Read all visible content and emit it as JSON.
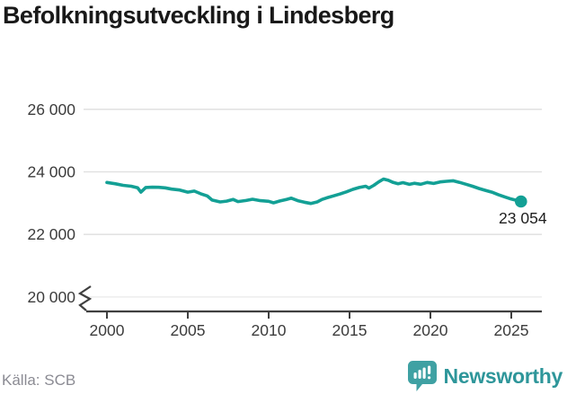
{
  "title": "Befolkningsutveckling i Lindesberg",
  "source": "Källa: SCB",
  "branding": {
    "name": "Newsworthy",
    "icon": "bar-chart-speech-bubble-icon"
  },
  "colors": {
    "line": "#13a095",
    "logo_teal": "#3fa1a3",
    "wordmark_teal": "#2e969a",
    "gridline": "#dedede",
    "gridline_light": "#eaeaea",
    "axis": "#3f3f3f",
    "axis_text": "#3c3c3c",
    "title_text": "#191919",
    "end_label_text": "#1f1f1f",
    "source_text": "#8b8b93"
  },
  "chart_data": {
    "type": "line",
    "title": "Befolkningsutveckling i Lindesberg",
    "xlabel": "",
    "ylabel": "",
    "x_ticks": [
      {
        "value": 2000,
        "label": "2000"
      },
      {
        "value": 2005,
        "label": "2005"
      },
      {
        "value": 2010,
        "label": "2010"
      },
      {
        "value": 2015,
        "label": "2015"
      },
      {
        "value": 2020,
        "label": "2020"
      },
      {
        "value": 2025,
        "label": "2025"
      }
    ],
    "y_ticks": [
      {
        "value": 20000,
        "label": "20 000"
      },
      {
        "value": 22000,
        "label": "22 000"
      },
      {
        "value": 24000,
        "label": "24 000"
      },
      {
        "value": 26000,
        "label": "26 000"
      }
    ],
    "ylim": [
      19800,
      26200
    ],
    "xlim": [
      1998.5,
      2026.9
    ],
    "grid": "horizontal",
    "legend": "none",
    "axis_break_at_bottom": true,
    "end_label": "23 054",
    "end_value": 23054,
    "series": [
      {
        "name": "Befolkning",
        "points": [
          [
            2000.0,
            23660
          ],
          [
            2000.5,
            23620
          ],
          [
            2001.0,
            23570
          ],
          [
            2001.5,
            23540
          ],
          [
            2001.9,
            23490
          ],
          [
            2002.1,
            23350
          ],
          [
            2002.4,
            23500
          ],
          [
            2002.8,
            23510
          ],
          [
            2003.2,
            23505
          ],
          [
            2003.6,
            23490
          ],
          [
            2004.0,
            23450
          ],
          [
            2004.5,
            23420
          ],
          [
            2005.0,
            23350
          ],
          [
            2005.4,
            23385
          ],
          [
            2005.8,
            23300
          ],
          [
            2006.2,
            23230
          ],
          [
            2006.5,
            23100
          ],
          [
            2007.0,
            23040
          ],
          [
            2007.4,
            23065
          ],
          [
            2007.8,
            23120
          ],
          [
            2008.1,
            23050
          ],
          [
            2008.6,
            23085
          ],
          [
            2009.0,
            23125
          ],
          [
            2009.5,
            23080
          ],
          [
            2010.0,
            23060
          ],
          [
            2010.3,
            23010
          ],
          [
            2010.7,
            23070
          ],
          [
            2011.1,
            23120
          ],
          [
            2011.4,
            23160
          ],
          [
            2011.8,
            23080
          ],
          [
            2012.2,
            23030
          ],
          [
            2012.6,
            22990
          ],
          [
            2013.0,
            23040
          ],
          [
            2013.3,
            23120
          ],
          [
            2013.6,
            23170
          ],
          [
            2014.0,
            23230
          ],
          [
            2014.4,
            23290
          ],
          [
            2014.8,
            23360
          ],
          [
            2015.2,
            23440
          ],
          [
            2015.6,
            23500
          ],
          [
            2016.0,
            23540
          ],
          [
            2016.2,
            23480
          ],
          [
            2016.5,
            23570
          ],
          [
            2016.8,
            23680
          ],
          [
            2017.1,
            23770
          ],
          [
            2017.4,
            23730
          ],
          [
            2017.7,
            23660
          ],
          [
            2018.0,
            23620
          ],
          [
            2018.3,
            23655
          ],
          [
            2018.7,
            23600
          ],
          [
            2019.0,
            23635
          ],
          [
            2019.4,
            23605
          ],
          [
            2019.8,
            23660
          ],
          [
            2020.2,
            23630
          ],
          [
            2020.6,
            23680
          ],
          [
            2021.0,
            23700
          ],
          [
            2021.4,
            23715
          ],
          [
            2021.8,
            23665
          ],
          [
            2022.2,
            23605
          ],
          [
            2022.6,
            23540
          ],
          [
            2023.0,
            23470
          ],
          [
            2023.4,
            23410
          ],
          [
            2023.8,
            23350
          ],
          [
            2024.2,
            23270
          ],
          [
            2024.6,
            23200
          ],
          [
            2025.0,
            23130
          ],
          [
            2025.6,
            23054
          ]
        ]
      }
    ]
  }
}
